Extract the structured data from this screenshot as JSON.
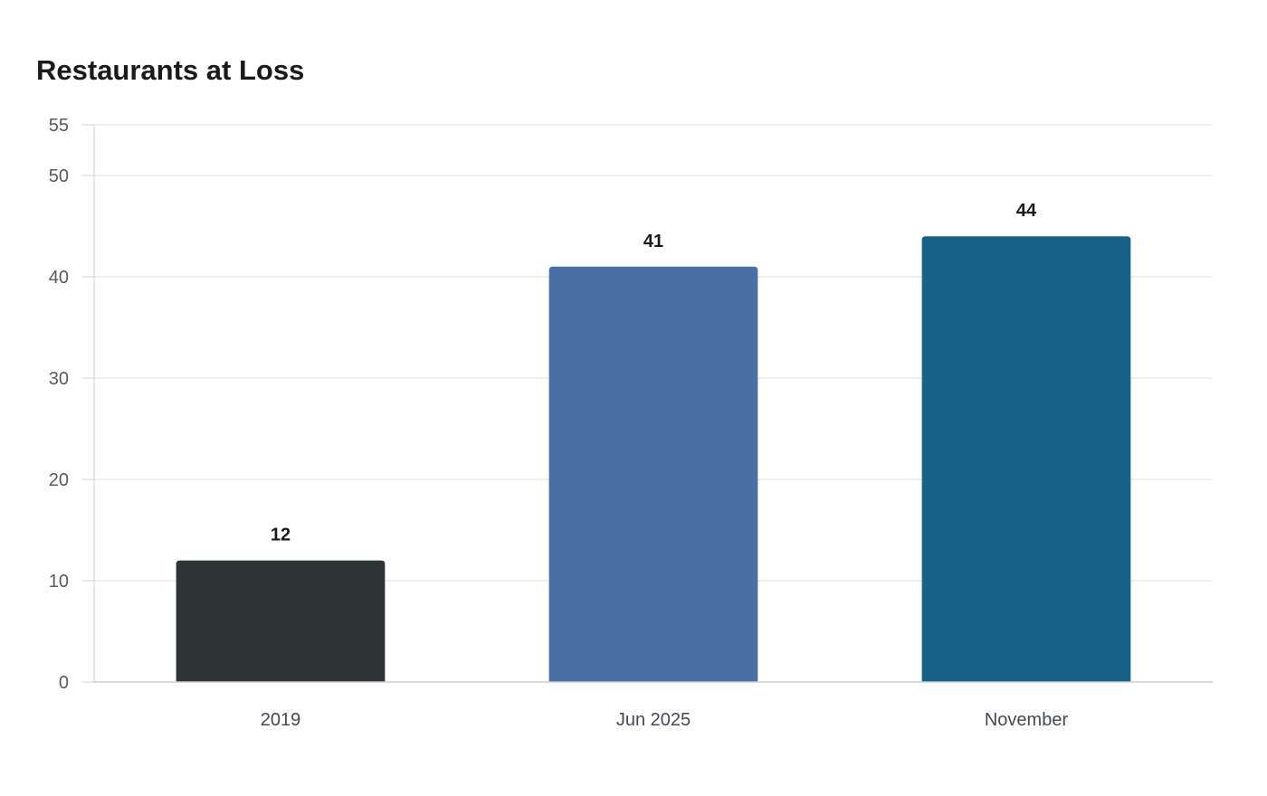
{
  "chart_data": {
    "type": "bar",
    "title": "Restaurants at Loss",
    "xlabel": "",
    "ylabel": "",
    "categories": [
      "2019",
      "Jun 2025",
      "November"
    ],
    "values": [
      12,
      41,
      44
    ],
    "value_labels": [
      "12",
      "41",
      "44"
    ],
    "colors": [
      "#2d3436",
      "#4a6fa5",
      "#186187"
    ],
    "ylim": [
      0,
      55
    ],
    "y_ticks": [
      0,
      10,
      20,
      30,
      40,
      50,
      55
    ],
    "y_tick_labels": [
      "0",
      "10",
      "20",
      "30",
      "40",
      "50",
      "55"
    ],
    "grid": true,
    "legend": "none"
  }
}
